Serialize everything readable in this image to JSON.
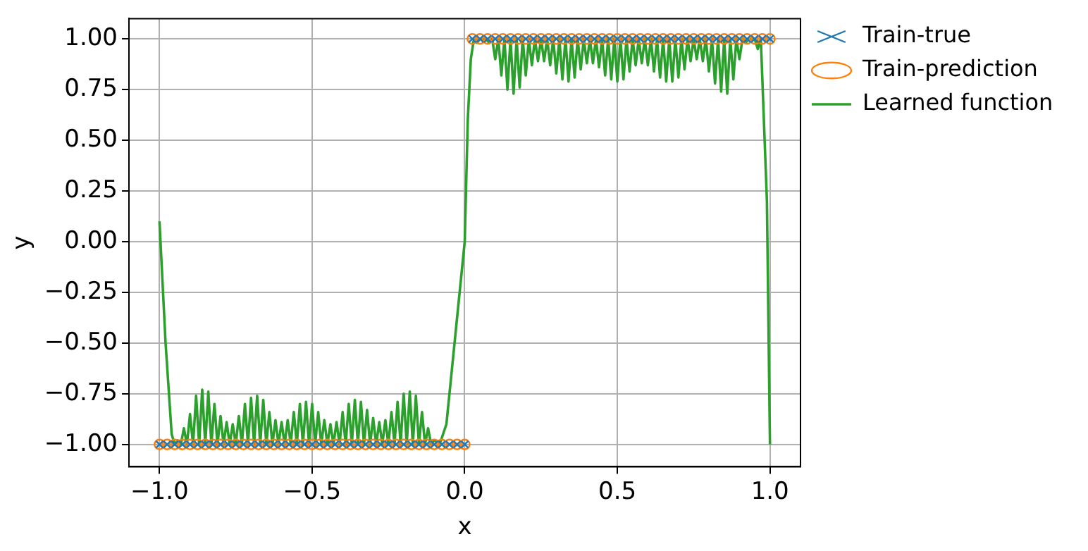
{
  "chart_data": {
    "type": "line",
    "xlabel": "x",
    "ylabel": "y",
    "xlim": [
      -1.1,
      1.1
    ],
    "ylim": [
      -1.11,
      1.1
    ],
    "xticks": [
      {
        "value": -1,
        "label": "−1.0"
      },
      {
        "value": -0.5,
        "label": "−0.5"
      },
      {
        "value": 0,
        "label": "0.0"
      },
      {
        "value": 0.5,
        "label": "0.5"
      },
      {
        "value": 1,
        "label": "1.0"
      }
    ],
    "yticks": [
      {
        "value": -1,
        "label": "−1.00"
      },
      {
        "value": -0.75,
        "label": "−0.75"
      },
      {
        "value": -0.5,
        "label": "−0.50"
      },
      {
        "value": -0.25,
        "label": "−0.25"
      },
      {
        "value": 0,
        "label": "0.00"
      },
      {
        "value": 0.25,
        "label": "0.25"
      },
      {
        "value": 0.5,
        "label": "0.50"
      },
      {
        "value": 0.75,
        "label": "0.75"
      },
      {
        "value": 1,
        "label": "1.00"
      }
    ],
    "grid": true,
    "legend": "right",
    "series": [
      {
        "name": "Train-true",
        "type": "scatter",
        "marker": "cross",
        "color": "#1f77b4",
        "x": [
          -1,
          -0.975,
          -0.95,
          -0.925,
          -0.9,
          -0.875,
          -0.85,
          -0.825,
          -0.8,
          -0.775,
          -0.75,
          -0.725,
          -0.7,
          -0.675,
          -0.65,
          -0.625,
          -0.6,
          -0.575,
          -0.55,
          -0.525,
          -0.5,
          -0.475,
          -0.45,
          -0.425,
          -0.4,
          -0.375,
          -0.35,
          -0.325,
          -0.3,
          -0.275,
          -0.25,
          -0.225,
          -0.2,
          -0.175,
          -0.15,
          -0.125,
          -0.1,
          -0.075,
          -0.05,
          -0.025,
          0,
          0.025,
          0.05,
          0.075,
          0.1,
          0.125,
          0.15,
          0.175,
          0.2,
          0.225,
          0.25,
          0.275,
          0.3,
          0.325,
          0.35,
          0.375,
          0.4,
          0.425,
          0.45,
          0.475,
          0.5,
          0.525,
          0.55,
          0.575,
          0.6,
          0.625,
          0.65,
          0.675,
          0.7,
          0.725,
          0.75,
          0.775,
          0.8,
          0.825,
          0.85,
          0.875,
          0.9,
          0.925,
          0.95,
          0.975,
          1
        ],
        "values": [
          -1,
          -1,
          -1,
          -1,
          -1,
          -1,
          -1,
          -1,
          -1,
          -1,
          -1,
          -1,
          -1,
          -1,
          -1,
          -1,
          -1,
          -1,
          -1,
          -1,
          -1,
          -1,
          -1,
          -1,
          -1,
          -1,
          -1,
          -1,
          -1,
          -1,
          -1,
          -1,
          -1,
          -1,
          -1,
          -1,
          -1,
          -1,
          -1,
          -1,
          -1,
          1,
          1,
          1,
          1,
          1,
          1,
          1,
          1,
          1,
          1,
          1,
          1,
          1,
          1,
          1,
          1,
          1,
          1,
          1,
          1,
          1,
          1,
          1,
          1,
          1,
          1,
          1,
          1,
          1,
          1,
          1,
          1,
          1,
          1,
          1,
          1,
          1,
          1,
          1,
          1
        ]
      },
      {
        "name": "Train-prediction",
        "type": "scatter",
        "marker": "circle",
        "color": "#ff7f0e",
        "x": [
          -1,
          -0.975,
          -0.95,
          -0.925,
          -0.9,
          -0.875,
          -0.85,
          -0.825,
          -0.8,
          -0.775,
          -0.75,
          -0.725,
          -0.7,
          -0.675,
          -0.65,
          -0.625,
          -0.6,
          -0.575,
          -0.55,
          -0.525,
          -0.5,
          -0.475,
          -0.45,
          -0.425,
          -0.4,
          -0.375,
          -0.35,
          -0.325,
          -0.3,
          -0.275,
          -0.25,
          -0.225,
          -0.2,
          -0.175,
          -0.15,
          -0.125,
          -0.1,
          -0.075,
          -0.05,
          -0.025,
          0,
          0.025,
          0.05,
          0.075,
          0.1,
          0.125,
          0.15,
          0.175,
          0.2,
          0.225,
          0.25,
          0.275,
          0.3,
          0.325,
          0.35,
          0.375,
          0.4,
          0.425,
          0.45,
          0.475,
          0.5,
          0.525,
          0.55,
          0.575,
          0.6,
          0.625,
          0.65,
          0.675,
          0.7,
          0.725,
          0.75,
          0.775,
          0.8,
          0.825,
          0.85,
          0.875,
          0.9,
          0.925,
          0.95,
          0.975,
          1
        ],
        "values": [
          -1,
          -1,
          -1,
          -1,
          -1,
          -1,
          -1,
          -1,
          -1,
          -1,
          -1,
          -1,
          -1,
          -1,
          -1,
          -1,
          -1,
          -1,
          -1,
          -1,
          -1,
          -1,
          -1,
          -1,
          -1,
          -1,
          -1,
          -1,
          -1,
          -1,
          -1,
          -1,
          -1,
          -1,
          -1,
          -1,
          -1,
          -1,
          -1,
          -1,
          -1,
          1,
          1,
          1,
          1,
          1,
          1,
          1,
          1,
          1,
          1,
          1,
          1,
          1,
          1,
          1,
          1,
          1,
          1,
          1,
          1,
          1,
          1,
          1,
          1,
          1,
          1,
          1,
          1,
          1,
          1,
          1,
          1,
          1,
          1,
          1,
          1,
          1,
          1,
          1,
          1
        ]
      },
      {
        "name": "Learned function",
        "marker": "none",
        "line_style": "solid",
        "color": "#2ca02c",
        "x": [
          -1,
          -0.98,
          -0.96,
          -0.95,
          -0.94,
          -0.93,
          -0.92,
          -0.91,
          -0.9,
          -0.89,
          -0.88,
          -0.87,
          -0.86,
          -0.85,
          -0.84,
          -0.83,
          -0.82,
          -0.81,
          -0.8,
          -0.79,
          -0.78,
          -0.77,
          -0.76,
          -0.75,
          -0.74,
          -0.73,
          -0.72,
          -0.71,
          -0.7,
          -0.69,
          -0.68,
          -0.67,
          -0.66,
          -0.65,
          -0.64,
          -0.63,
          -0.62,
          -0.61,
          -0.6,
          -0.59,
          -0.58,
          -0.57,
          -0.56,
          -0.55,
          -0.54,
          -0.53,
          -0.52,
          -0.51,
          -0.5,
          -0.49,
          -0.48,
          -0.47,
          -0.46,
          -0.45,
          -0.44,
          -0.43,
          -0.42,
          -0.41,
          -0.4,
          -0.39,
          -0.38,
          -0.37,
          -0.36,
          -0.35,
          -0.34,
          -0.33,
          -0.32,
          -0.31,
          -0.3,
          -0.29,
          -0.28,
          -0.27,
          -0.26,
          -0.25,
          -0.24,
          -0.23,
          -0.22,
          -0.21,
          -0.2,
          -0.19,
          -0.18,
          -0.17,
          -0.16,
          -0.15,
          -0.14,
          -0.13,
          -0.12,
          -0.11,
          -0.1,
          -0.08,
          -0.06,
          -0.04,
          -0.02,
          0,
          0.01,
          0.02,
          0.03,
          0.04,
          0.05,
          0.06,
          0.07,
          0.08,
          0.09,
          0.1,
          0.11,
          0.12,
          0.13,
          0.14,
          0.15,
          0.16,
          0.17,
          0.18,
          0.19,
          0.2,
          0.21,
          0.22,
          0.23,
          0.24,
          0.25,
          0.26,
          0.27,
          0.28,
          0.29,
          0.3,
          0.31,
          0.32,
          0.33,
          0.34,
          0.35,
          0.36,
          0.37,
          0.38,
          0.39,
          0.4,
          0.41,
          0.42,
          0.43,
          0.44,
          0.45,
          0.46,
          0.47,
          0.48,
          0.49,
          0.5,
          0.51,
          0.52,
          0.53,
          0.54,
          0.55,
          0.56,
          0.57,
          0.58,
          0.59,
          0.6,
          0.61,
          0.62,
          0.63,
          0.64,
          0.65,
          0.66,
          0.67,
          0.68,
          0.69,
          0.7,
          0.71,
          0.72,
          0.73,
          0.74,
          0.75,
          0.76,
          0.77,
          0.78,
          0.79,
          0.8,
          0.81,
          0.82,
          0.83,
          0.84,
          0.85,
          0.86,
          0.87,
          0.88,
          0.89,
          0.9,
          0.91,
          0.92,
          0.93,
          0.94,
          0.95,
          0.96,
          0.97,
          0.98,
          0.99,
          1
        ],
        "values": [
          0.1,
          -0.5,
          -0.95,
          -1,
          -0.98,
          -1,
          -0.92,
          -1,
          -0.85,
          -1,
          -0.76,
          -1,
          -0.73,
          -1,
          -0.74,
          -1,
          -0.8,
          -1,
          -0.86,
          -1,
          -0.89,
          -1,
          -0.9,
          -1,
          -0.86,
          -1,
          -0.8,
          -1,
          -0.77,
          -1,
          -0.76,
          -1,
          -0.78,
          -1,
          -0.84,
          -1,
          -0.88,
          -1,
          -0.89,
          -1,
          -0.88,
          -1,
          -0.84,
          -1,
          -0.8,
          -1,
          -0.79,
          -1,
          -0.8,
          -1,
          -0.84,
          -1,
          -0.88,
          -1,
          -0.9,
          -1,
          -0.89,
          -1,
          -0.84,
          -1,
          -0.8,
          -1,
          -0.78,
          -1,
          -0.79,
          -1,
          -0.83,
          -1,
          -0.87,
          -1,
          -0.89,
          -1,
          -0.88,
          -1,
          -0.84,
          -1,
          -0.79,
          -1,
          -0.75,
          -1,
          -0.74,
          -1,
          -0.76,
          -1,
          -0.84,
          -1,
          -0.92,
          -1,
          -0.98,
          -0.99,
          -0.9,
          -0.6,
          -0.3,
          0,
          0.6,
          0.9,
          1,
          0.98,
          1,
          1,
          1,
          0.98,
          1,
          0.9,
          1,
          0.82,
          1,
          0.75,
          1,
          0.73,
          1,
          0.76,
          1,
          0.82,
          1,
          0.87,
          1,
          0.89,
          1,
          0.89,
          1,
          0.87,
          1,
          0.83,
          1,
          0.8,
          1,
          0.79,
          1,
          0.81,
          1,
          0.85,
          1,
          0.88,
          1,
          0.88,
          1,
          0.86,
          1,
          0.82,
          1,
          0.8,
          1,
          0.79,
          1,
          0.8,
          1,
          0.84,
          1,
          0.87,
          1,
          0.88,
          1,
          0.87,
          1,
          0.84,
          1,
          0.81,
          1,
          0.79,
          1,
          0.79,
          1,
          0.81,
          1,
          0.85,
          1,
          0.89,
          1,
          0.9,
          1,
          0.89,
          1,
          0.84,
          1,
          0.78,
          1,
          0.74,
          1,
          0.73,
          1,
          0.8,
          1,
          0.9,
          1,
          0.98,
          1,
          1,
          1,
          0.95,
          1,
          0.6,
          0.2,
          -1
        ]
      }
    ]
  }
}
